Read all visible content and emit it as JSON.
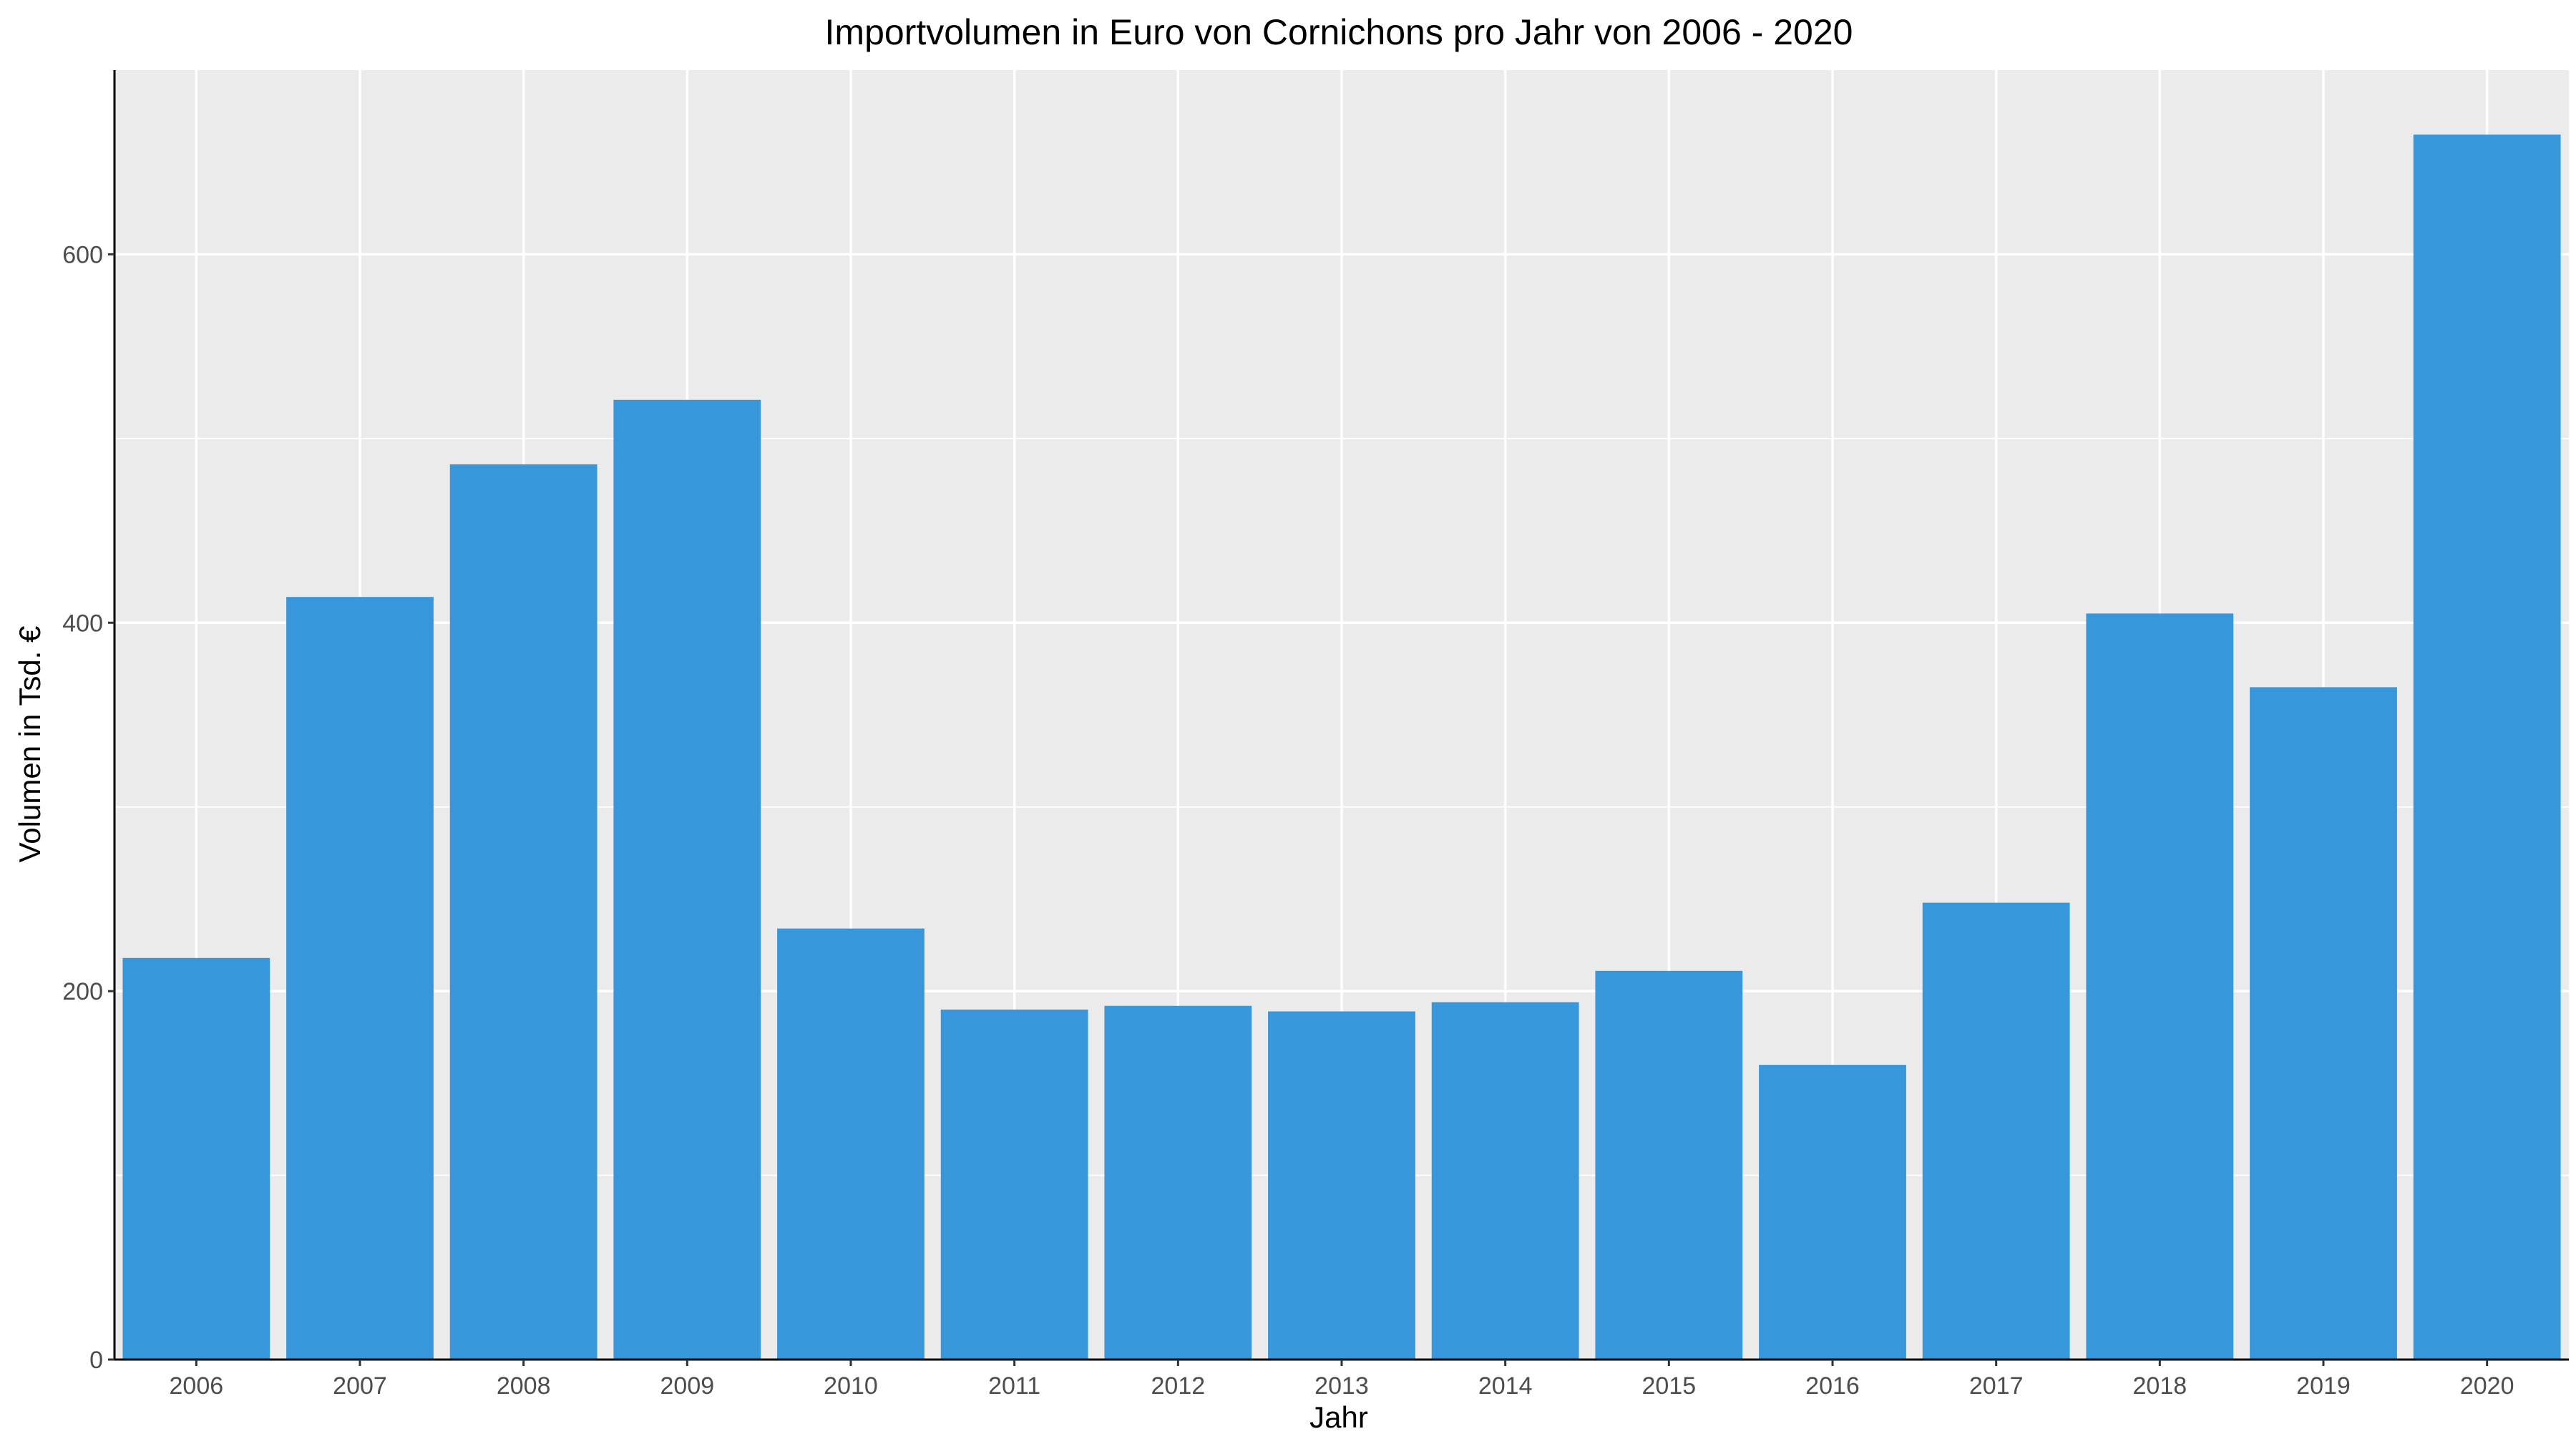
{
  "chart_data": {
    "type": "bar",
    "title": "Importvolumen in Euro von Cornichons pro Jahr von 2006 - 2020",
    "xlabel": "Jahr",
    "ylabel": "Volumen in Tsd. €",
    "categories": [
      "2006",
      "2007",
      "2008",
      "2009",
      "2010",
      "2011",
      "2012",
      "2013",
      "2014",
      "2015",
      "2016",
      "2017",
      "2018",
      "2019",
      "2020"
    ],
    "values": [
      218,
      414,
      486,
      521,
      234,
      190,
      192,
      189,
      194,
      211,
      160,
      248,
      405,
      365,
      665
    ],
    "ylim": [
      0,
      700
    ],
    "yticks": [
      0,
      200,
      400,
      600
    ],
    "grid": true,
    "legend": "none",
    "colors": {
      "bar": "#3797da",
      "panel": "#ebebeb",
      "grid": "#ffffff"
    }
  }
}
